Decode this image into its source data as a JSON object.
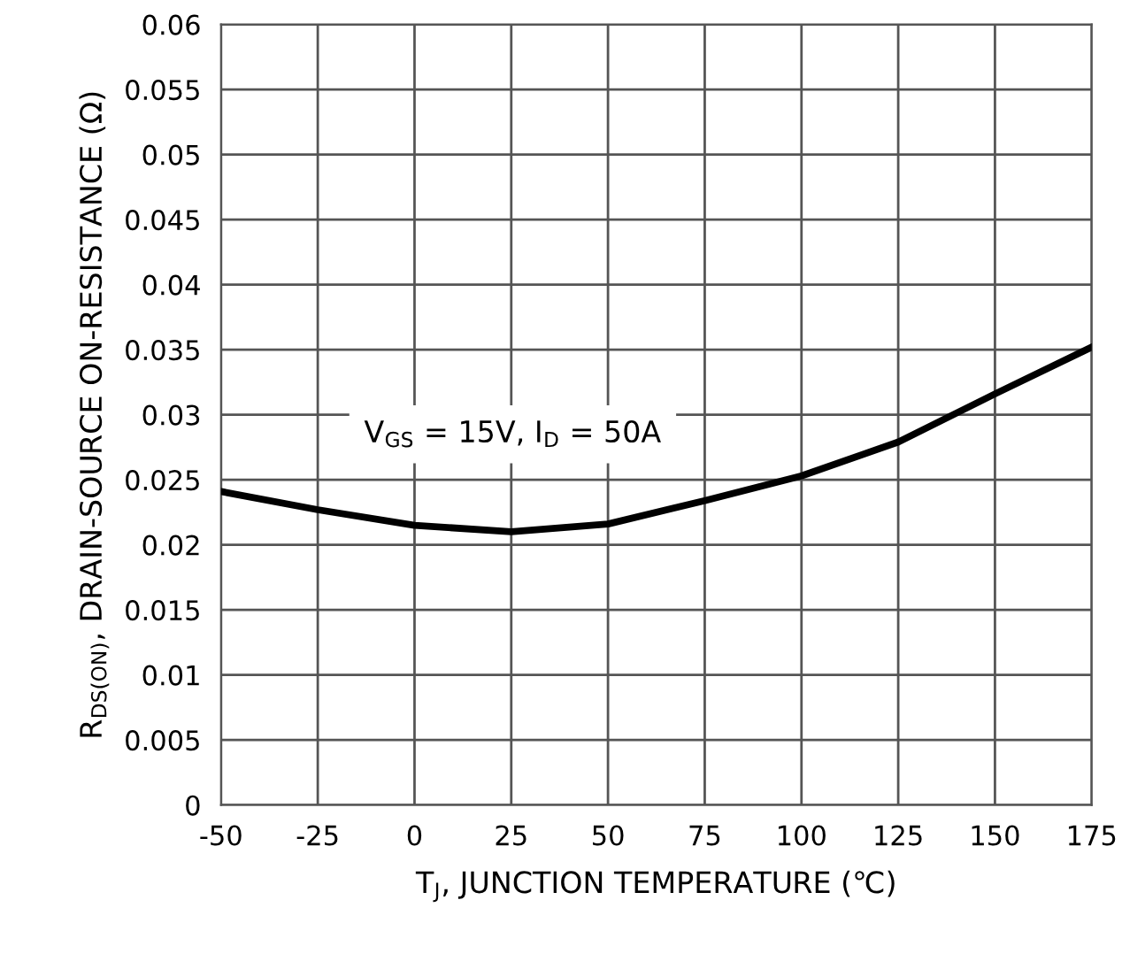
{
  "chart_data": {
    "type": "line",
    "xlabel": "T$_{J}$, JUNCTION TEMPERATURE (℃)",
    "ylabel": "R$_{DS(ON)}$, DRAIN-SOURCE ON-RESISTANCE (Ω)",
    "x": [
      -50,
      -25,
      0,
      25,
      50,
      75,
      100,
      125,
      150,
      175
    ],
    "series": [
      {
        "color": "#000000",
        "values": [
          0.0241,
          0.0227,
          0.0215,
          0.021,
          0.0216,
          0.0234,
          0.0253,
          0.0279,
          0.0316,
          0.0352
        ]
      }
    ],
    "xlim": [
      -50,
      175
    ],
    "xticks": [
      -50,
      -25,
      0,
      25,
      50,
      75,
      100,
      125,
      150,
      175
    ],
    "ylim": [
      0,
      0.06
    ],
    "yticks": [
      0,
      0.005,
      0.01,
      0.015,
      0.02,
      0.025,
      0.03,
      0.035,
      0.04,
      0.045,
      0.05,
      0.055,
      0.06
    ],
    "grid": true,
    "marker": "none",
    "line_style": "solid",
    "annotations": [
      "V$_{GS}$ = 15V, I$_{D}$ = 50A"
    ]
  }
}
